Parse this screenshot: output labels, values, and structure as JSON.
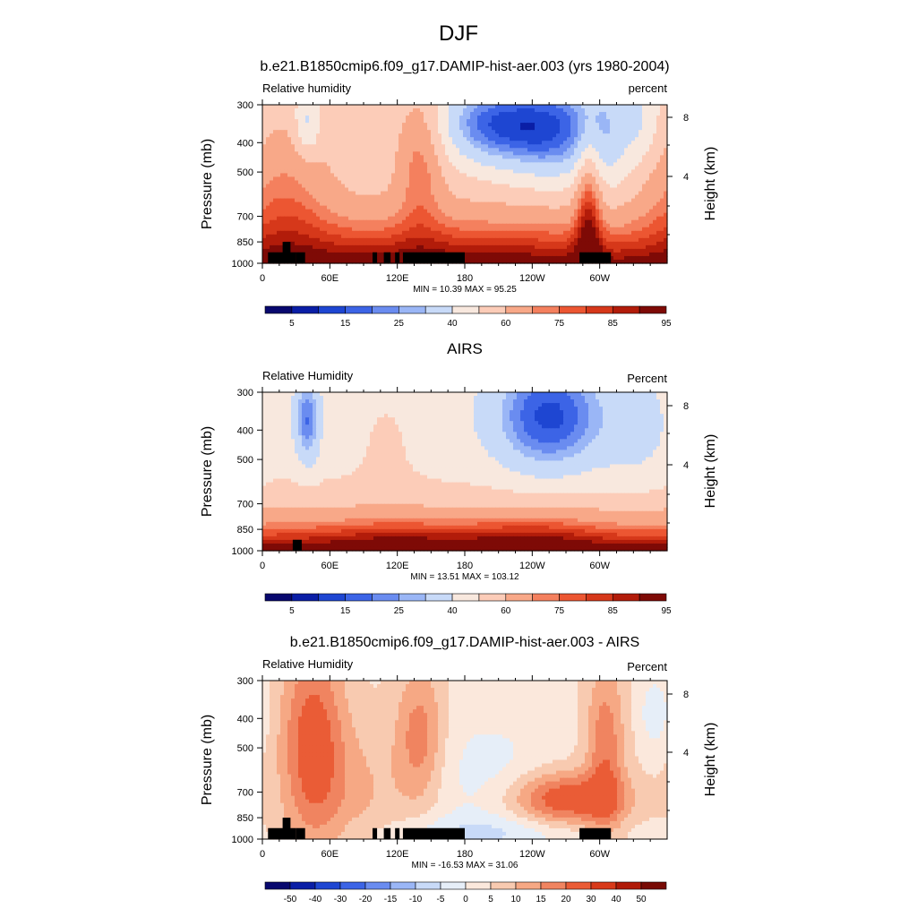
{
  "figure_title": "DJF",
  "colors": {
    "seq_palette": [
      "#08086e",
      "#0a1ea6",
      "#1e46d2",
      "#3c64e6",
      "#6a8cf0",
      "#9ab6f6",
      "#c8daf8",
      "#f8e8de",
      "#fcccb8",
      "#f8a888",
      "#f4805e",
      "#ec5632",
      "#d6381a",
      "#b21c0a",
      "#7e0a06"
    ],
    "diff_palette": [
      "#08086e",
      "#0a1ea6",
      "#1e46d2",
      "#3c64e6",
      "#6a8cf0",
      "#9ab6f6",
      "#c8daf8",
      "#e6eef8",
      "#fbe8dc",
      "#f8cab0",
      "#f6a884",
      "#f08460",
      "#ea5c36",
      "#d83a1a",
      "#b01a08",
      "#780a04"
    ],
    "terrain": "#000000"
  },
  "chart_data": [
    {
      "type": "heatmap",
      "title": "b.e21.B1850cmip6.f09_g17.DAMIP-hist-aer.003 (yrs 1980-2004)",
      "left_label": "Relative humidity",
      "right_label": "percent",
      "ylabel": "Pressure (mb)",
      "ylabel_right": "Height (km)",
      "x_ticks": [
        "0",
        "60E",
        "120E",
        "180",
        "120W",
        "60W"
      ],
      "y_ticks": [
        "300",
        "400",
        "500",
        "700",
        "850",
        "1000"
      ],
      "height_ticks": [
        "8",
        "4"
      ],
      "min_max": "MIN =  10.39  MAX =  95.25",
      "colorbar_labels": [
        "5",
        "15",
        "25",
        "40",
        "60",
        "75",
        "85",
        "95"
      ],
      "xlim": [
        0,
        360
      ],
      "ylim": [
        300,
        1000
      ]
    },
    {
      "type": "heatmap",
      "title": "AIRS",
      "left_label": "Relative Humidity",
      "right_label": "Percent",
      "ylabel": "Pressure (mb)",
      "ylabel_right": "Height (km)",
      "x_ticks": [
        "0",
        "60E",
        "120E",
        "180",
        "120W",
        "60W"
      ],
      "y_ticks": [
        "300",
        "400",
        "500",
        "700",
        "850",
        "1000"
      ],
      "height_ticks": [
        "8",
        "4"
      ],
      "min_max": "MIN =  13.51  MAX = 103.12",
      "colorbar_labels": [
        "5",
        "15",
        "25",
        "40",
        "60",
        "75",
        "85",
        "95"
      ],
      "xlim": [
        0,
        360
      ],
      "ylim": [
        300,
        1000
      ]
    },
    {
      "type": "heatmap",
      "title": "b.e21.B1850cmip6.f09_g17.DAMIP-hist-aer.003 - AIRS",
      "left_label": "Relative Humidity",
      "right_label": "Percent",
      "ylabel": "Pressure (mb)",
      "ylabel_right": "Height (km)",
      "x_ticks": [
        "0",
        "60E",
        "120E",
        "180",
        "120W",
        "60W"
      ],
      "y_ticks": [
        "300",
        "400",
        "500",
        "700",
        "850",
        "1000"
      ],
      "height_ticks": [
        "8",
        "4"
      ],
      "min_max": "MIN = -16.53  MAX =  31.06",
      "colorbar_labels": [
        "-50",
        "-40",
        "-30",
        "-20",
        "-15",
        "-10",
        "-5",
        "0",
        "5",
        "10",
        "15",
        "20",
        "30",
        "40",
        "50"
      ],
      "xlim": [
        0,
        360
      ],
      "ylim": [
        300,
        1000
      ]
    }
  ]
}
